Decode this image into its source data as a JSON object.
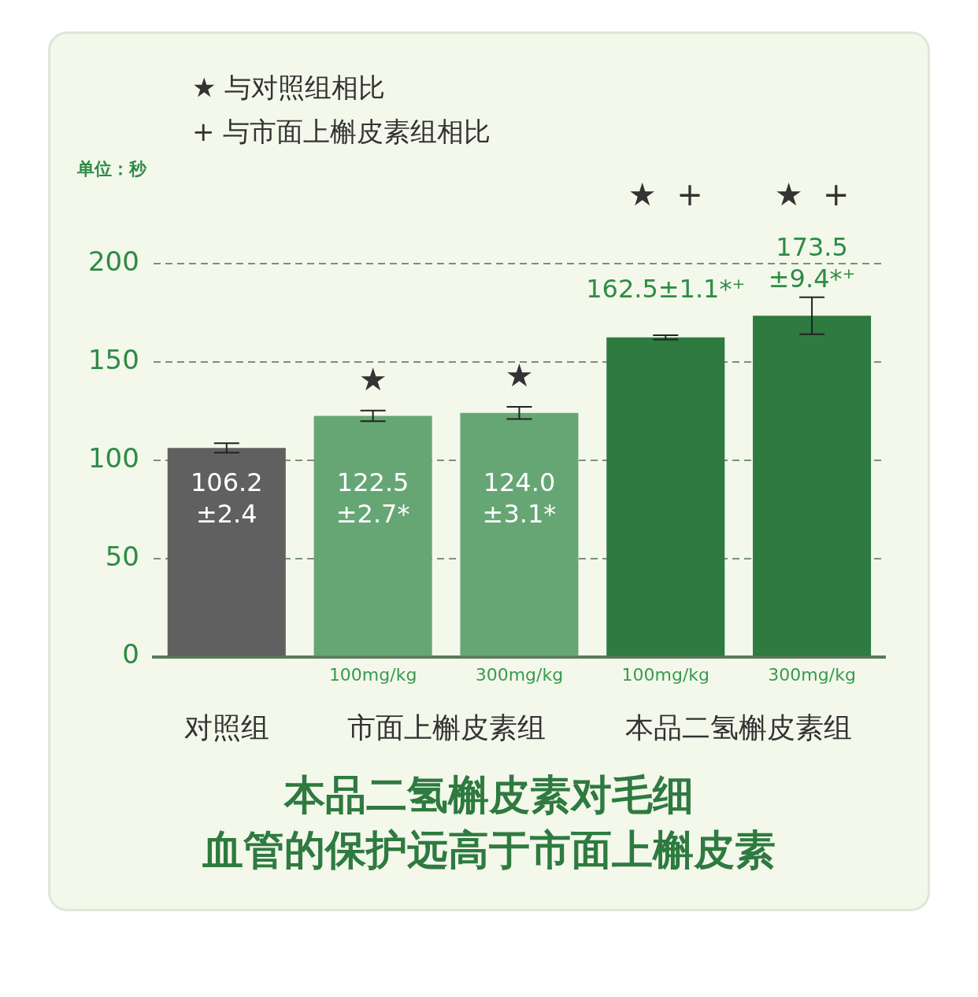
{
  "chart_data": {
    "type": "bar",
    "title": "本品二氢槲皮素对毛细",
    "subtitle": "血管的保护远高于市面上槲皮素",
    "ylabel": "单位：秒",
    "categories": [
      null,
      "100mg/kg",
      "300mg/kg",
      "100mg/kg",
      "300mg/kg"
    ],
    "values": [
      106.2,
      122.5,
      124.0,
      162.5,
      173.5
    ],
    "errors": [
      2.4,
      2.7,
      3.1,
      1.1,
      9.4
    ],
    "colors": [
      "#606060",
      "#66a675",
      "#66a675",
      "#2e7a40",
      "#2e7a40"
    ],
    "value_labels": [
      "106.2\n±2.4",
      "122.5\n±2.7*",
      "124.0\n±3.1*",
      "162.5±1.1*⁺",
      "173.5\n±9.4*⁺"
    ],
    "annotations": [
      "★  与对照组相比",
      "+  与市面上槲皮素组相比",
      "对照组",
      "市面上槲皮素组",
      "本品二氢槲皮素组",
      "★",
      "★",
      "★  +",
      "★  +"
    ],
    "ylim": [
      0,
      200
    ],
    "yticks": [
      0,
      50,
      100,
      150,
      200
    ],
    "grid": "y",
    "legend": false
  }
}
